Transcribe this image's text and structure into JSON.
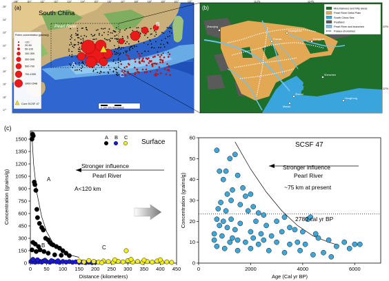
{
  "panel_a": {
    "label": "(a)",
    "region_label": "South China",
    "river_label": "Pearl River",
    "cluster_labels": [
      "A",
      "B",
      "C"
    ],
    "lon_ticks": [
      "108°",
      "110°",
      "111°",
      "112°",
      "113°",
      "114°",
      "115°",
      "116°",
      "117°",
      "118°",
      "119°",
      "120°",
      "121°",
      "122°"
    ],
    "lat_ticks": [
      "25°",
      "24°",
      "23°",
      "22°",
      "21°",
      "20°",
      "19°",
      "18°",
      "17°"
    ],
    "legend_title": "Pollen concentration (grains/g)",
    "legend_items": [
      "<20",
      "20-50",
      "50-100",
      "100-300",
      "300-500",
      "500-700",
      "700-1000",
      "1000-1548"
    ],
    "core_label": "Core SCSF 47",
    "scale_label": "0   100   200 Kilometers"
  },
  "panel_b": {
    "label": "(b)",
    "lon_ticks": [
      "113°E",
      "114°E"
    ],
    "lat_ticks": [
      "23°N",
      "22°N"
    ],
    "legend_items": [
      {
        "label": "Mountainous and hilly areas",
        "color": "#1f6e2a"
      },
      {
        "label": "Pearl River Delta Plain",
        "color": "#e3a853"
      },
      {
        "label": "South China Sea",
        "color": "#3aa4dc"
      },
      {
        "label": "Peatland",
        "color": "#5a5a5a"
      },
      {
        "label": "Pearl River and branches",
        "color": "#6fc2ee"
      },
      {
        "label": "Palaeo-shorelines",
        "color": "#ffffff"
      }
    ],
    "place_labels": [
      "Guangzhou",
      "Dongguan",
      "Shenzhen",
      "Zhuhai",
      "Macau",
      "HongKong",
      "Foshan",
      "Zhaoqing"
    ]
  },
  "panel_c": {
    "label": "(c)",
    "left_title": "Surface",
    "left_annotation": "Stronger influence",
    "left_annotation_2": "Pearl River",
    "left_annotation_3": "A<120 km",
    "left_cluster_labels": [
      "A",
      "B",
      "C"
    ],
    "right_title": "SCSF 47",
    "right_annotation": "Stronger influence",
    "right_annotation_2": "Pearl River",
    "right_annotation_3": "~75 km at present",
    "dotted_label": "2780 cal yr BP"
  },
  "chart_data": [
    {
      "type": "scatter",
      "title": "Surface",
      "xlabel": "Distance (kilometers)",
      "ylabel": "Concentration (grains/g)",
      "xlim": [
        0,
        450
      ],
      "ylim": [
        0,
        1600
      ],
      "x_ticks": [
        0,
        50,
        100,
        150,
        200,
        250,
        300,
        350,
        400,
        450
      ],
      "y_ticks": [
        0,
        150,
        300,
        450,
        600,
        750,
        900,
        1050,
        1200,
        1350,
        1500
      ],
      "legend": [
        "A",
        "B",
        "C"
      ],
      "series": [
        {
          "name": "A",
          "color": "#000000",
          "points": [
            [
              5,
              1500
            ],
            [
              7,
              1560
            ],
            [
              9,
              1540
            ],
            [
              12,
              980
            ],
            [
              14,
              950
            ],
            [
              17,
              880
            ],
            [
              20,
              650
            ],
            [
              22,
              550
            ],
            [
              28,
              480
            ],
            [
              35,
              430
            ],
            [
              40,
              400
            ],
            [
              47,
              300
            ],
            [
              55,
              280
            ],
            [
              60,
              250
            ],
            [
              65,
              230
            ],
            [
              70,
              220
            ],
            [
              80,
              200
            ],
            [
              90,
              180
            ],
            [
              100,
              150
            ],
            [
              110,
              120
            ],
            [
              8,
              250
            ],
            [
              15,
              230
            ],
            [
              25,
              200
            ],
            [
              30,
              160
            ],
            [
              42,
              140
            ],
            [
              55,
              120
            ],
            [
              75,
              100
            ],
            [
              95,
              95
            ],
            [
              5,
              160
            ],
            [
              18,
              140
            ],
            [
              120,
              90
            ]
          ]
        },
        {
          "name": "B",
          "color": "#1a1ad6",
          "points": [
            [
              2,
              20
            ],
            [
              6,
              15
            ],
            [
              10,
              25
            ],
            [
              15,
              10
            ],
            [
              20,
              30
            ],
            [
              25,
              15
            ],
            [
              30,
              20
            ],
            [
              35,
              12
            ],
            [
              40,
              25
            ],
            [
              50,
              18
            ],
            [
              60,
              10
            ],
            [
              70,
              22
            ],
            [
              80,
              15
            ],
            [
              90,
              8
            ],
            [
              100,
              20
            ],
            [
              110,
              12
            ],
            [
              120,
              18
            ],
            [
              130,
              10
            ],
            [
              140,
              15
            ],
            [
              150,
              8
            ],
            [
              160,
              12
            ],
            [
              170,
              6
            ],
            [
              180,
              10
            ],
            [
              190,
              5
            ],
            [
              200,
              8
            ],
            [
              8,
              45
            ],
            [
              22,
              40
            ],
            [
              45,
              35
            ],
            [
              65,
              30
            ],
            [
              85,
              28
            ]
          ]
        },
        {
          "name": "C",
          "color": "#f2ee1c",
          "points": [
            [
              150,
              25
            ],
            [
              165,
              15
            ],
            [
              180,
              30
            ],
            [
              195,
              20
            ],
            [
              210,
              12
            ],
            [
              225,
              25
            ],
            [
              240,
              18
            ],
            [
              255,
              10
            ],
            [
              270,
              22
            ],
            [
              285,
              15
            ],
            [
              295,
              150
            ],
            [
              300,
              30
            ],
            [
              315,
              12
            ],
            [
              330,
              20
            ],
            [
              345,
              8
            ],
            [
              360,
              18
            ],
            [
              375,
              12
            ],
            [
              390,
              25
            ],
            [
              405,
              10
            ],
            [
              420,
              15
            ],
            [
              435,
              8
            ],
            [
              220,
              5
            ],
            [
              260,
              40
            ],
            [
              310,
              45
            ],
            [
              350,
              35
            ],
            [
              400,
              40
            ]
          ]
        }
      ]
    },
    {
      "type": "scatter",
      "title": "SCSF 47",
      "xlabel": "Age (Cal yr BP)",
      "ylabel": "Concentration (grains/g)",
      "xlim": [
        0,
        7000
      ],
      "ylim": [
        0,
        60
      ],
      "x_ticks": [
        0,
        2000,
        4000,
        6000
      ],
      "y_ticks": [
        0,
        10,
        20,
        30,
        40,
        50,
        60
      ],
      "dotted_line_y": 23.5,
      "series": [
        {
          "name": "SCSF 47",
          "color": "#3fa6d8",
          "points": [
            [
              700,
              54
            ],
            [
              1200,
              50
            ],
            [
              1400,
              52
            ],
            [
              800,
              44
            ],
            [
              1050,
              44
            ],
            [
              950,
              40
            ],
            [
              1500,
              42
            ],
            [
              1300,
              35
            ],
            [
              1700,
              36
            ],
            [
              1100,
              33
            ],
            [
              1800,
              32
            ],
            [
              2000,
              33
            ],
            [
              1600,
              28
            ],
            [
              850,
              29
            ],
            [
              1250,
              30
            ],
            [
              2100,
              27
            ],
            [
              750,
              26
            ],
            [
              1050,
              25
            ],
            [
              1900,
              25
            ],
            [
              2300,
              24
            ],
            [
              2500,
              23
            ],
            [
              700,
              21
            ],
            [
              950,
              20
            ],
            [
              1250,
              21
            ],
            [
              1600,
              19
            ],
            [
              2200,
              20
            ],
            [
              2600,
              18
            ],
            [
              3000,
              20
            ],
            [
              3300,
              22
            ],
            [
              3500,
              17
            ],
            [
              4200,
              21
            ],
            [
              4300,
              22
            ],
            [
              800,
              18
            ],
            [
              1100,
              17
            ],
            [
              1400,
              16
            ],
            [
              2000,
              15
            ],
            [
              2400,
              14
            ],
            [
              2800,
              13
            ],
            [
              3200,
              15
            ],
            [
              3700,
              16
            ],
            [
              4000,
              15
            ],
            [
              4500,
              14
            ],
            [
              600,
              14
            ],
            [
              900,
              13
            ],
            [
              1300,
              12
            ],
            [
              1500,
              11
            ],
            [
              1800,
              10
            ],
            [
              2100,
              12
            ],
            [
              2500,
              11
            ],
            [
              3000,
              10
            ],
            [
              3500,
              9
            ],
            [
              3800,
              10
            ],
            [
              4100,
              9
            ],
            [
              4600,
              12
            ],
            [
              5000,
              11
            ],
            [
              5300,
              8
            ],
            [
              5600,
              10
            ],
            [
              6000,
              9
            ],
            [
              6200,
              9
            ],
            [
              5800,
              7
            ],
            [
              700,
              8
            ],
            [
              1000,
              7
            ],
            [
              1500,
              6
            ],
            [
              2000,
              7
            ],
            [
              2700,
              6
            ],
            [
              3300,
              5
            ],
            [
              3900,
              6
            ],
            [
              4400,
              4
            ],
            [
              4800,
              5
            ],
            [
              5100,
              3
            ],
            [
              1200,
              10
            ],
            [
              2300,
              9
            ],
            [
              600,
              11
            ]
          ]
        }
      ]
    }
  ]
}
